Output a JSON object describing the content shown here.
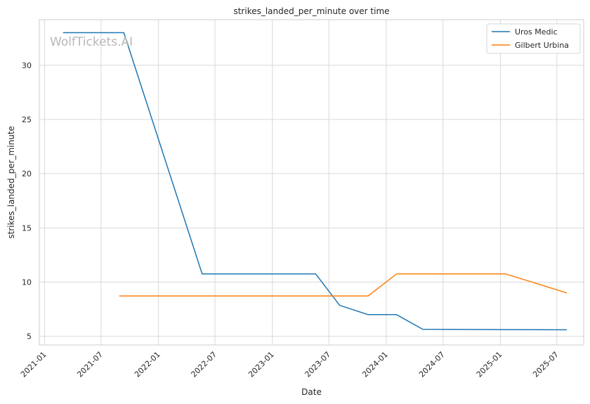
{
  "watermark": "WolfTickets.AI",
  "chart_data": {
    "type": "line",
    "title": "strikes_landed_per_minute over time",
    "xlabel": "Date",
    "ylabel": "strikes_landed_per_minute",
    "x_axis": "date",
    "xlim": [
      "2020-12-15",
      "2025-09-25"
    ],
    "ylim": [
      4.2,
      34.2
    ],
    "x_ticks": [
      "2021-01",
      "2021-07",
      "2022-01",
      "2022-07",
      "2023-01",
      "2023-07",
      "2024-01",
      "2024-07",
      "2025-01",
      "2025-07"
    ],
    "y_ticks": [
      5,
      10,
      15,
      20,
      25,
      30
    ],
    "grid": true,
    "legend_position": "top-right",
    "series": [
      {
        "name": "Uros Medic",
        "color": "#1f77b4",
        "points": [
          {
            "x": "2021-03-01",
            "y": 33.0
          },
          {
            "x": "2021-09-12",
            "y": 33.0
          },
          {
            "x": "2022-05-21",
            "y": 10.75
          },
          {
            "x": "2023-05-20",
            "y": 10.75
          },
          {
            "x": "2023-08-05",
            "y": 7.85
          },
          {
            "x": "2023-11-04",
            "y": 7.0
          },
          {
            "x": "2024-02-03",
            "y": 7.0
          },
          {
            "x": "2024-04-27",
            "y": 5.65
          },
          {
            "x": "2025-01-18",
            "y": 5.62
          },
          {
            "x": "2025-08-02",
            "y": 5.6
          }
        ]
      },
      {
        "name": "Gilbert Urbina",
        "color": "#ff7f0e",
        "points": [
          {
            "x": "2021-08-28",
            "y": 8.72
          },
          {
            "x": "2023-11-04",
            "y": 8.72
          },
          {
            "x": "2024-02-03",
            "y": 10.75
          },
          {
            "x": "2025-01-18",
            "y": 10.75
          },
          {
            "x": "2025-08-02",
            "y": 9.0
          }
        ]
      }
    ]
  }
}
